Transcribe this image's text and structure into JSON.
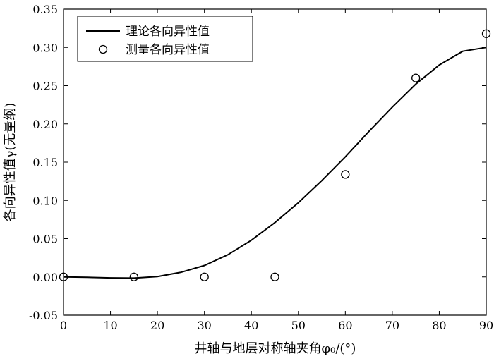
{
  "chart_data": {
    "type": "line",
    "xlabel": "井轴与地层对称轴夹角φ₀/(°)",
    "ylabel": "各向异性值γ(无量纲)",
    "xlim": [
      0,
      90
    ],
    "ylim": [
      -0.05,
      0.35
    ],
    "xticks": [
      "0",
      "10",
      "20",
      "30",
      "40",
      "50",
      "60",
      "70",
      "80",
      "90"
    ],
    "yticks": [
      "-0.05",
      "0.00",
      "0.05",
      "0.10",
      "0.15",
      "0.20",
      "0.25",
      "0.30",
      "0.35"
    ],
    "grid": false,
    "legend_position": "top-left",
    "series": [
      {
        "name": "理论各向异性值",
        "kind": "line",
        "x": [
          0,
          5,
          10,
          15,
          20,
          25,
          30,
          35,
          40,
          45,
          50,
          55,
          60,
          65,
          70,
          75,
          80,
          85,
          90
        ],
        "y": [
          0.0,
          -0.0005,
          -0.0012,
          -0.0015,
          0.0005,
          0.006,
          0.015,
          0.029,
          0.048,
          0.071,
          0.097,
          0.126,
          0.157,
          0.19,
          0.222,
          0.252,
          0.277,
          0.295,
          0.3
        ]
      },
      {
        "name": "测量各向异性值",
        "kind": "scatter",
        "x": [
          0,
          15,
          30,
          45,
          60,
          75,
          90
        ],
        "y": [
          0.0,
          0.0,
          0.0,
          0.0,
          0.134,
          0.26,
          0.318
        ]
      }
    ]
  }
}
